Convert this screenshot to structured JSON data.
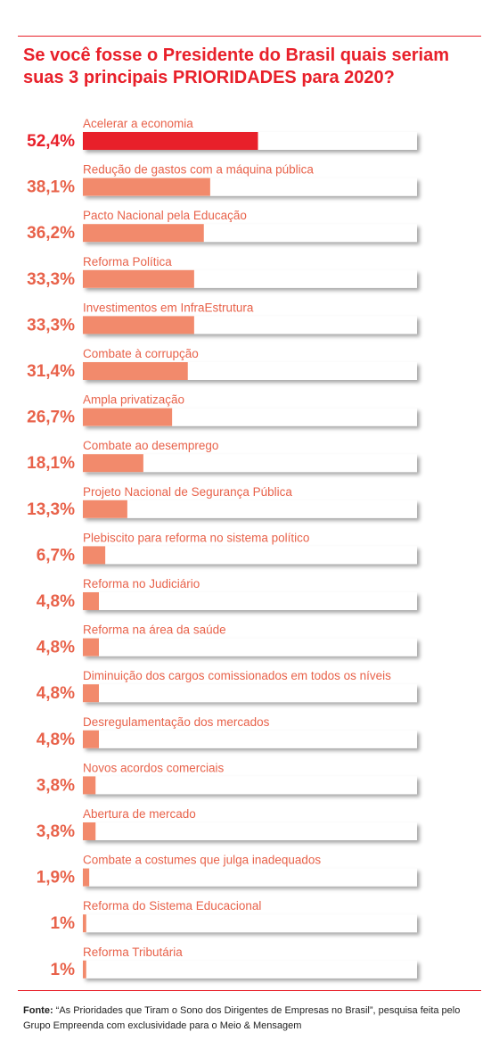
{
  "chart_data": {
    "type": "bar",
    "orientation": "horizontal",
    "title": "Se você fosse o Presidente do Brasil quais seriam suas 3 principais PRIORIDADES para 2020?",
    "xlim": [
      0,
      100
    ],
    "categories": [
      "Acelerar a economia",
      "Redução de gastos com a máquina pública",
      "Pacto Nacional pela Educação",
      "Reforma Política",
      "Investimentos em InfraEstrutura",
      "Combate à corrupção",
      "Ampla privatização",
      "Combate ao desemprego",
      "Projeto Nacional de Segurança Pública",
      "Plebiscito para reforma no sistema político",
      "Reforma no Judiciário",
      "Reforma na área da saúde",
      "Diminuição dos cargos comissionados em todos os níveis",
      "Desregulamentação dos mercados",
      "Novos acordos comerciais",
      "Abertura de mercado",
      "Combate a costumes que julga inadequados",
      "Reforma do Sistema Educacional",
      "Reforma Tributária"
    ],
    "values": [
      52.4,
      38.1,
      36.2,
      33.3,
      33.3,
      31.4,
      26.7,
      18.1,
      13.3,
      6.7,
      4.8,
      4.8,
      4.8,
      4.8,
      3.8,
      3.8,
      1.9,
      1,
      1
    ],
    "value_labels": [
      "52,4%",
      "38,1%",
      "36,2%",
      "33,3%",
      "33,3%",
      "31,4%",
      "26,7%",
      "18,1%",
      "13,3%",
      "6,7%",
      "4,8%",
      "4,8%",
      "4,8%",
      "4,8%",
      "3,8%",
      "3,8%",
      "1,9%",
      "1%",
      "1%"
    ],
    "grid": false,
    "legend": "none"
  },
  "colors": {
    "accent": "#e8202a",
    "bar": "#f28a6c",
    "label": "#e8624a",
    "track_shadow": "#d9d9d9"
  },
  "source": {
    "label": "Fonte:",
    "text": " “As Prioridades que Tiram o Sono dos Dirigentes de Empresas no Brasil”, pesquisa feita pelo Grupo Empreenda com exclusividade para o Meio & Mensagem"
  }
}
